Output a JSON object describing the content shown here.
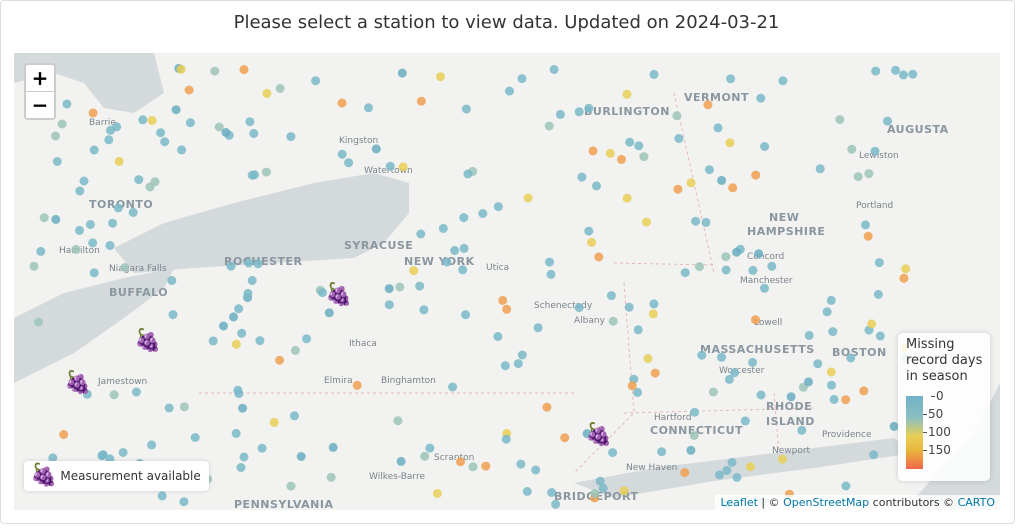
{
  "title": "Please select a station to view data. Updated on 2024-03-21",
  "zoom": {
    "in": "+",
    "out": "−"
  },
  "legend": {
    "title_lines": [
      "Missing",
      "record days",
      "in season"
    ],
    "ticks": [
      "0",
      "50",
      "100",
      "150"
    ],
    "colors": [
      "#6fb3c8",
      "#e8cf57",
      "#f0664a"
    ]
  },
  "measurement_legend": {
    "icon": "grape-icon",
    "label": "Measurement available"
  },
  "attribution": {
    "leaflet": "Leaflet",
    "sep1": " | © ",
    "osm": "OpenStreetMap",
    "mid": " contributors © ",
    "carto": "CARTO"
  },
  "places": [
    "VERMONT",
    "BURLINGTON",
    "AUGUSTA",
    "Barrie",
    "Kingston",
    "Watertown",
    "Lewiston",
    "TORONTO",
    "NEW",
    "HAMPSHIRE",
    "Portland",
    "Hamilton",
    "Niagara Falls",
    "ROCHESTER",
    "SYRACUSE",
    "NEW YORK",
    "Utica",
    "Concord",
    "BUFFALO",
    "Schenectady",
    "Manchester",
    "Albany",
    "Lowell",
    "MASSACHUSETTS",
    "BOSTON",
    "Ithaca",
    "Worcester",
    "Jamestown",
    "Elmira",
    "Binghamton",
    "Hartford",
    "RHODE",
    "ISLAND",
    "Providence",
    "CONNECTICUT",
    "Scranton",
    "Newport",
    "New Haven",
    "Wilkes-Barre",
    "BRIDGEPORT",
    "PENNSYLVANIA"
  ],
  "grape_marker": "🍇"
}
